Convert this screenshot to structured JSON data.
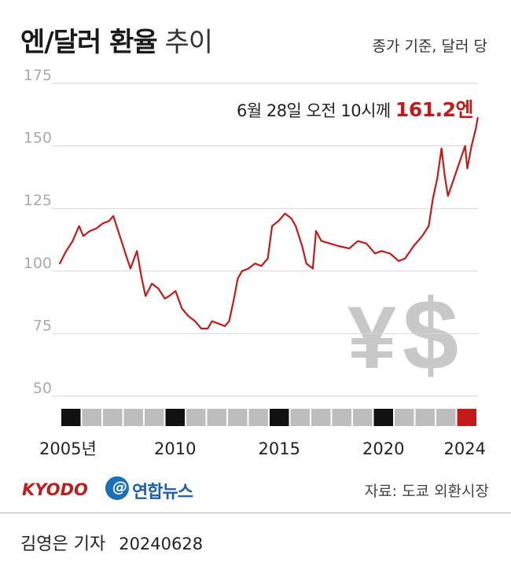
{
  "header": {
    "title_bold": "엔/달러 환율",
    "title_light": "추이",
    "unit_note": "종가 기준, 달러 당"
  },
  "annotation": {
    "text": "6월 28일 오전 10시께",
    "value": "161.2엔"
  },
  "footer": {
    "kyodo": "KYODO",
    "yonhap_mark": "@",
    "yonhap": "연합뉴스",
    "source": "자료: 도쿄 외환시장",
    "reporter": "김영은 기자",
    "date": "20240628"
  },
  "colors": {
    "line": "#c41a1a",
    "highlight": "#c41a1a",
    "grid": "#d6d6d6",
    "year_mark": "#111111",
    "year_plain": "#bdbdbd",
    "watermark": "#c8c8c8"
  },
  "chart_data": {
    "type": "line",
    "title": "엔/달러 환율 추이",
    "ylabel": "종가 기준, 달러 당",
    "ylim": [
      40,
      175
    ],
    "yticks": [
      50,
      75,
      100,
      125,
      150,
      175
    ],
    "xlim": [
      2005.0,
      2024.5
    ],
    "x_labels": [
      {
        "year": 2005,
        "label": "2005년"
      },
      {
        "year": 2010,
        "label": "2010"
      },
      {
        "year": 2015,
        "label": "2015"
      },
      {
        "year": 2020,
        "label": "2020"
      },
      {
        "year": 2024,
        "label": "2024"
      }
    ],
    "year_boxes": {
      "start": 2005,
      "end": 2024,
      "marked": [
        2005,
        2010,
        2015,
        2020
      ],
      "highlighted": [
        2024
      ]
    },
    "grid": true,
    "series": [
      {
        "x": [
          2005.0,
          2005.3,
          2005.6,
          2005.9,
          2006.1,
          2006.4,
          2006.7,
          2007.0,
          2007.3,
          2007.5,
          2007.8,
          2008.1,
          2008.3,
          2008.6,
          2008.8,
          2009.0,
          2009.3,
          2009.6,
          2009.9,
          2010.1,
          2010.4,
          2010.7,
          2011.0,
          2011.3,
          2011.6,
          2011.9,
          2012.1,
          2012.4,
          2012.7,
          2012.9,
          2013.1,
          2013.3,
          2013.5,
          2013.8,
          2014.1,
          2014.4,
          2014.7,
          2014.9,
          2015.2,
          2015.5,
          2015.8,
          2016.0,
          2016.3,
          2016.5,
          2016.8,
          2016.95,
          2017.2,
          2017.6,
          2018.0,
          2018.5,
          2018.9,
          2019.3,
          2019.7,
          2020.0,
          2020.4,
          2020.8,
          2021.1,
          2021.5,
          2021.9,
          2022.2,
          2022.4,
          2022.6,
          2022.8,
          2022.95,
          2023.1,
          2023.3,
          2023.5,
          2023.7,
          2023.9,
          2024.0,
          2024.2,
          2024.4,
          2024.49
        ],
        "y": [
          103,
          108,
          112,
          118,
          114,
          116,
          117,
          119,
          120,
          122,
          114,
          106,
          101,
          108,
          98,
          90,
          95,
          93,
          89,
          90,
          92,
          85,
          82,
          80,
          77,
          77,
          80,
          79,
          78,
          80,
          88,
          97,
          100,
          101,
          103,
          102,
          105,
          118,
          120,
          123,
          121,
          118,
          110,
          103,
          101,
          116,
          112,
          111,
          110,
          109,
          112,
          111,
          107,
          108,
          107,
          104,
          105,
          110,
          114,
          118,
          129,
          137,
          149,
          138,
          130,
          135,
          140,
          145,
          150,
          141,
          150,
          157,
          161.2
        ]
      }
    ]
  }
}
